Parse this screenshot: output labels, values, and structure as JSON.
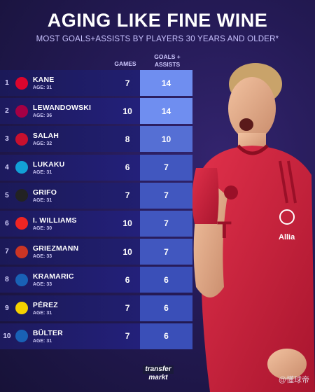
{
  "header": {
    "title": "AGING LIKE FINE WINE",
    "subtitle": "MOST GOALS+ASSISTS BY PLAYERS 30 YEARS AND OLDER*"
  },
  "columns": {
    "games": "GAMES",
    "ga": "GOALS +\nASSISTS"
  },
  "players": [
    {
      "rank": "1",
      "name": "KANE",
      "age": "AGE: 31",
      "games": "7",
      "ga": "14",
      "ga_value": 14,
      "crest_color": "#dc052d",
      "crest_icon": "bayern-crest-icon"
    },
    {
      "rank": "2",
      "name": "LEWANDOWSKI",
      "age": "AGE: 36",
      "games": "10",
      "ga": "14",
      "ga_value": 14,
      "crest_color": "#a50044",
      "crest_icon": "barcelona-crest-icon"
    },
    {
      "rank": "3",
      "name": "SALAH",
      "age": "AGE: 32",
      "games": "8",
      "ga": "10",
      "ga_value": 10,
      "crest_color": "#c8102e",
      "crest_icon": "liverpool-crest-icon"
    },
    {
      "rank": "4",
      "name": "LUKAKU",
      "age": "AGE: 31",
      "games": "6",
      "ga": "7",
      "ga_value": 7,
      "crest_color": "#12a0d7",
      "crest_icon": "napoli-crest-icon"
    },
    {
      "rank": "5",
      "name": "GRIFO",
      "age": "AGE: 31",
      "games": "7",
      "ga": "7",
      "ga_value": 7,
      "crest_color": "#222222",
      "crest_icon": "freiburg-crest-icon"
    },
    {
      "rank": "6",
      "name": "I. WILLIAMS",
      "age": "AGE: 30",
      "games": "10",
      "ga": "7",
      "ga_value": 7,
      "crest_color": "#ee2523",
      "crest_icon": "athletic-crest-icon"
    },
    {
      "rank": "7",
      "name": "GRIEZMANN",
      "age": "AGE: 33",
      "games": "10",
      "ga": "7",
      "ga_value": 7,
      "crest_color": "#cb3524",
      "crest_icon": "atletico-crest-icon"
    },
    {
      "rank": "8",
      "name": "KRAMARIC",
      "age": "AGE: 33",
      "games": "6",
      "ga": "6",
      "ga_value": 6,
      "crest_color": "#1961b5",
      "crest_icon": "hoffenheim-crest-icon"
    },
    {
      "rank": "9",
      "name": "PÉREZ",
      "age": "AGE: 31",
      "games": "7",
      "ga": "6",
      "ga_value": 6,
      "crest_color": "#f5d100",
      "crest_icon": "villarreal-crest-icon"
    },
    {
      "rank": "10",
      "name": "BÜLTER",
      "age": "AGE: 31",
      "games": "7",
      "ga": "6",
      "ga_value": 6,
      "crest_color": "#1961b5",
      "crest_icon": "hoffenheim-crest-icon"
    }
  ],
  "footer": {
    "logo_top": "transfer",
    "logo_bottom": "markt",
    "watermark": "@懂球帝"
  },
  "colors": {
    "ga_high": "#6f8ef0",
    "ga_low": "#3a4fb8",
    "background": "#241a55"
  }
}
